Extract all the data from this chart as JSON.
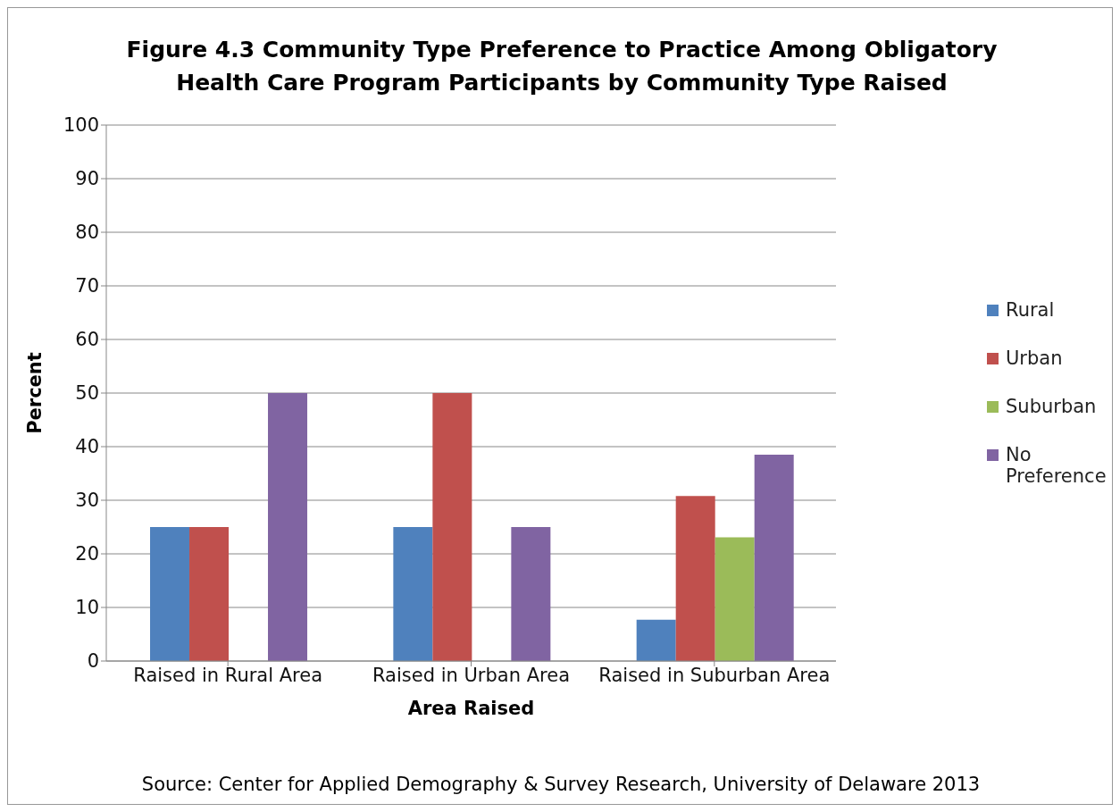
{
  "chart_data": {
    "type": "bar",
    "title": "Figure 4.3  Community Type Preference to Practice Among Obligatory Health Care Program Participants by Community Type Raised",
    "xlabel": "Area Raised",
    "ylabel": "Percent",
    "categories": [
      "Raised in Rural Area",
      "Raised in Urban Area",
      "Raised in Suburban Area"
    ],
    "series": [
      {
        "name": "Rural",
        "color": "#4f81bd",
        "values": [
          25,
          25,
          7.7
        ]
      },
      {
        "name": "Urban",
        "color": "#c0504d",
        "values": [
          25,
          50,
          30.8
        ]
      },
      {
        "name": "Suburban",
        "color": "#9bbb59",
        "values": [
          0,
          0,
          23.1
        ]
      },
      {
        "name": "No Preference",
        "color": "#8064a2",
        "values": [
          50,
          25,
          38.5
        ]
      }
    ],
    "ylim": [
      0,
      100
    ],
    "yticks": [
      0,
      10,
      20,
      30,
      40,
      50,
      60,
      70,
      80,
      90,
      100
    ],
    "grid": "y",
    "legend": "right",
    "annotations": [
      "Source:  Center for Applied Demography & Survey Research, University of Delaware 2013"
    ]
  }
}
